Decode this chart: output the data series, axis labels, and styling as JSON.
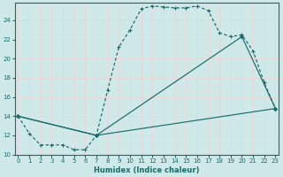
{
  "xlabel": "Humidex (Indice chaleur)",
  "bg_color": "#cfe8e8",
  "grid_color": "#ddd",
  "line_color": "#1a6b6b",
  "xlim": [
    -0.3,
    23.3
  ],
  "ylim": [
    10.0,
    25.8
  ],
  "yticks": [
    10,
    12,
    14,
    16,
    18,
    20,
    22,
    24
  ],
  "xticks": [
    0,
    1,
    2,
    3,
    4,
    5,
    6,
    7,
    8,
    9,
    10,
    11,
    12,
    13,
    14,
    15,
    16,
    17,
    18,
    19,
    20,
    21,
    22,
    23
  ],
  "curve1_x": [
    0,
    1,
    2,
    3,
    4,
    5,
    6,
    7,
    8,
    9,
    10,
    11,
    12,
    13,
    14,
    15,
    16,
    17,
    18,
    19,
    20,
    21,
    22,
    23
  ],
  "curve1_y": [
    14.0,
    12.2,
    11.0,
    11.0,
    11.0,
    10.5,
    10.5,
    12.0,
    16.7,
    21.2,
    23.0,
    25.2,
    25.5,
    25.4,
    25.3,
    25.3,
    25.5,
    25.0,
    22.7,
    22.3,
    22.5,
    20.8,
    17.5,
    14.8
  ],
  "curve2_x": [
    0,
    7,
    20,
    23
  ],
  "curve2_y": [
    14.0,
    12.0,
    22.3,
    14.8
  ],
  "curve3_x": [
    0,
    7,
    23
  ],
  "curve3_y": [
    14.0,
    12.0,
    14.8
  ]
}
